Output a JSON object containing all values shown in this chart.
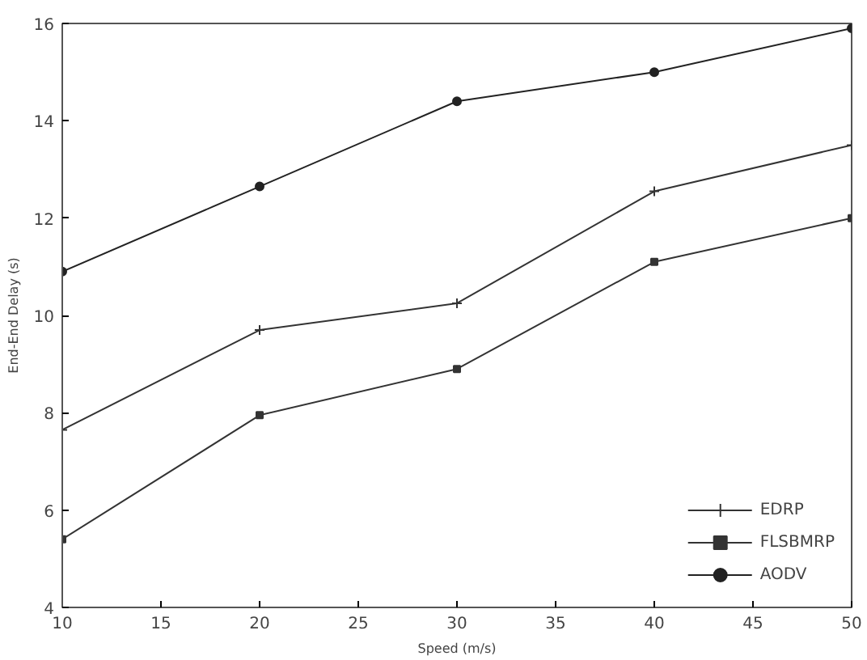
{
  "chart_data": {
    "type": "line",
    "xlabel": "Speed (m/s)",
    "ylabel": "End-End Delay (s)",
    "x": [
      10,
      20,
      30,
      40,
      50
    ],
    "series": [
      {
        "name": "EDRP",
        "color": "#333333",
        "marker": "cross",
        "values": [
          7.65,
          9.7,
          10.25,
          12.55,
          13.5
        ]
      },
      {
        "name": "FLSBMRP",
        "color": "#333333",
        "marker": "square",
        "values": [
          5.4,
          7.95,
          8.9,
          11.1,
          12.0
        ]
      },
      {
        "name": "AODV",
        "color": "#222222",
        "marker": "circle",
        "values": [
          10.9,
          12.65,
          14.4,
          15.0,
          15.9
        ]
      }
    ],
    "xlim": [
      10,
      50
    ],
    "xticks": [
      10,
      15,
      20,
      25,
      30,
      35,
      40,
      45,
      50
    ],
    "ylim": [
      4,
      16
    ],
    "yticks": [
      4,
      6,
      8,
      10,
      12,
      14,
      16
    ],
    "grid": false,
    "legend": "bottom right",
    "line_style": "solid"
  }
}
